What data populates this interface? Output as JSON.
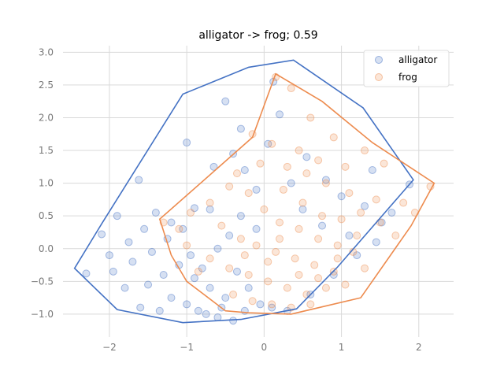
{
  "chart_data": {
    "type": "scatter",
    "title": "alligator -> frog; 0.59",
    "xlabel": "",
    "ylabel": "",
    "xlim": [
      -2.6,
      2.45
    ],
    "ylim": [
      -1.35,
      3.1
    ],
    "xticks": [
      -2,
      -1,
      0,
      1,
      2
    ],
    "yticks": [
      -1.0,
      -0.5,
      0.0,
      0.5,
      1.0,
      1.5,
      2.0,
      2.5,
      3.0
    ],
    "xtick_labels": [
      "−2",
      "−1",
      "0",
      "1",
      "2"
    ],
    "ytick_labels": [
      "−1.0",
      "−0.5",
      "0.0",
      "0.5",
      "1.0",
      "1.5",
      "2.0",
      "2.5",
      "3.0"
    ],
    "grid": true,
    "legend_position": "top-right",
    "series": [
      {
        "name": "alligator",
        "color": "#4472c4",
        "hull": [
          [
            -2.45,
            -0.3
          ],
          [
            -2.1,
            0.38
          ],
          [
            -1.05,
            2.36
          ],
          [
            -0.2,
            2.77
          ],
          [
            0.38,
            2.88
          ],
          [
            1.28,
            2.15
          ],
          [
            1.93,
            1.05
          ],
          [
            0.95,
            -0.28
          ],
          [
            0.42,
            -0.92
          ],
          [
            -0.3,
            -1.08
          ],
          [
            -1.05,
            -1.13
          ],
          [
            -1.9,
            -0.93
          ]
        ],
        "points": [
          [
            -2.1,
            0.22
          ],
          [
            -1.9,
            0.5
          ],
          [
            -2.3,
            -0.38
          ],
          [
            -1.8,
            -0.6
          ],
          [
            -1.6,
            -0.9
          ],
          [
            -1.4,
            0.55
          ],
          [
            -1.62,
            1.05
          ],
          [
            -1.0,
            1.62
          ],
          [
            -0.5,
            2.25
          ],
          [
            0.12,
            2.55
          ],
          [
            -0.3,
            1.83
          ],
          [
            -0.9,
            0.62
          ],
          [
            -1.25,
            0.15
          ],
          [
            -0.7,
            0.6
          ],
          [
            1.4,
            1.2
          ],
          [
            1.52,
            0.4
          ],
          [
            1.88,
            0.98
          ],
          [
            1.1,
            0.2
          ],
          [
            -1.95,
            -0.35
          ],
          [
            -1.7,
            -0.2
          ],
          [
            -1.5,
            -0.55
          ],
          [
            -1.2,
            -0.75
          ],
          [
            -1.0,
            -0.85
          ],
          [
            -0.85,
            -0.95
          ],
          [
            -0.6,
            -1.05
          ],
          [
            -0.4,
            -1.1
          ],
          [
            -1.3,
            -0.4
          ],
          [
            -1.1,
            -0.25
          ],
          [
            -0.9,
            -0.45
          ],
          [
            -0.7,
            -0.6
          ],
          [
            -0.5,
            -0.75
          ],
          [
            -0.8,
            -0.3
          ],
          [
            -1.05,
            0.3
          ],
          [
            -1.2,
            0.4
          ],
          [
            -0.95,
            -0.1
          ],
          [
            -0.6,
            0.0
          ],
          [
            -1.45,
            -0.05
          ],
          [
            -1.75,
            0.1
          ],
          [
            -2.0,
            -0.1
          ],
          [
            -1.55,
            0.3
          ],
          [
            -0.25,
            1.2
          ],
          [
            -0.1,
            0.9
          ],
          [
            0.35,
            1.0
          ],
          [
            0.55,
            1.4
          ],
          [
            0.8,
            1.05
          ],
          [
            1.0,
            0.8
          ],
          [
            1.3,
            0.65
          ],
          [
            1.65,
            0.55
          ],
          [
            0.2,
            2.05
          ],
          [
            -0.65,
            1.25
          ],
          [
            -0.4,
            1.45
          ],
          [
            0.05,
            1.6
          ],
          [
            -0.3,
            0.5
          ],
          [
            -0.1,
            0.3
          ],
          [
            -0.45,
            0.2
          ],
          [
            0.1,
            -0.9
          ],
          [
            0.3,
            -0.95
          ],
          [
            0.6,
            -0.7
          ],
          [
            0.9,
            -0.4
          ],
          [
            -0.2,
            -0.6
          ],
          [
            -0.35,
            -0.35
          ],
          [
            -0.75,
            -1.0
          ],
          [
            -1.35,
            -0.95
          ],
          [
            -0.55,
            -0.9
          ],
          [
            -0.25,
            -0.95
          ],
          [
            -0.05,
            -0.85
          ],
          [
            1.2,
            -0.1
          ],
          [
            1.45,
            0.1
          ],
          [
            0.75,
            0.35
          ],
          [
            0.5,
            0.6
          ]
        ]
      },
      {
        "name": "frog",
        "color": "#ed8b4e",
        "hull": [
          [
            0.15,
            2.67
          ],
          [
            0.75,
            2.25
          ],
          [
            1.4,
            1.62
          ],
          [
            2.2,
            1.0
          ],
          [
            1.9,
            0.35
          ],
          [
            1.25,
            -0.75
          ],
          [
            0.35,
            -1.0
          ],
          [
            -0.2,
            -0.98
          ],
          [
            -0.5,
            -0.95
          ],
          [
            -1.0,
            -0.5
          ],
          [
            -1.2,
            -0.1
          ],
          [
            -1.35,
            0.45
          ],
          [
            -0.15,
            1.7
          ]
        ],
        "points": [
          [
            0.15,
            2.62
          ],
          [
            0.35,
            2.45
          ],
          [
            -0.15,
            1.75
          ],
          [
            0.1,
            1.6
          ],
          [
            0.6,
            2.0
          ],
          [
            0.9,
            1.7
          ],
          [
            1.3,
            1.5
          ],
          [
            1.55,
            1.3
          ],
          [
            2.15,
            0.95
          ],
          [
            1.95,
            0.55
          ],
          [
            1.7,
            0.2
          ],
          [
            1.3,
            -0.3
          ],
          [
            1.05,
            -0.55
          ],
          [
            -0.95,
            0.55
          ],
          [
            -1.1,
            0.3
          ],
          [
            -1.3,
            0.4
          ],
          [
            -0.7,
            0.7
          ],
          [
            -0.45,
            0.95
          ],
          [
            -0.2,
            0.85
          ],
          [
            0.3,
            1.25
          ],
          [
            0.55,
            1.15
          ],
          [
            0.8,
            1.0
          ],
          [
            1.1,
            0.85
          ],
          [
            1.45,
            0.75
          ],
          [
            1.8,
            0.7
          ],
          [
            0.0,
            0.6
          ],
          [
            0.2,
            0.4
          ],
          [
            0.45,
            0.3
          ],
          [
            0.7,
            0.15
          ],
          [
            0.95,
            0.05
          ],
          [
            1.2,
            0.2
          ],
          [
            -0.55,
            0.35
          ],
          [
            -0.3,
            0.15
          ],
          [
            -0.1,
            0.05
          ],
          [
            0.15,
            -0.05
          ],
          [
            0.4,
            -0.15
          ],
          [
            0.65,
            -0.25
          ],
          [
            0.9,
            -0.35
          ],
          [
            -0.7,
            -0.15
          ],
          [
            -0.45,
            -0.3
          ],
          [
            -0.2,
            -0.4
          ],
          [
            0.05,
            -0.5
          ],
          [
            0.3,
            -0.6
          ],
          [
            0.55,
            -0.7
          ],
          [
            0.8,
            -0.6
          ],
          [
            -0.4,
            -0.7
          ],
          [
            -0.15,
            -0.8
          ],
          [
            0.1,
            -0.85
          ],
          [
            0.35,
            -0.9
          ],
          [
            0.6,
            -0.85
          ],
          [
            -0.85,
            -0.35
          ],
          [
            -1.0,
            0.05
          ],
          [
            0.25,
            0.9
          ],
          [
            0.5,
            0.7
          ],
          [
            0.75,
            0.5
          ],
          [
            1.0,
            0.45
          ],
          [
            1.25,
            0.55
          ],
          [
            1.5,
            0.4
          ],
          [
            -0.05,
            1.3
          ],
          [
            -0.35,
            1.15
          ],
          [
            0.45,
            1.5
          ],
          [
            0.7,
            1.35
          ],
          [
            1.05,
            1.25
          ],
          [
            0.2,
            0.15
          ],
          [
            0.45,
            -0.4
          ],
          [
            0.7,
            -0.45
          ],
          [
            0.95,
            -0.15
          ],
          [
            1.15,
            -0.05
          ],
          [
            0.05,
            -0.2
          ],
          [
            -0.25,
            -0.1
          ]
        ]
      }
    ]
  }
}
